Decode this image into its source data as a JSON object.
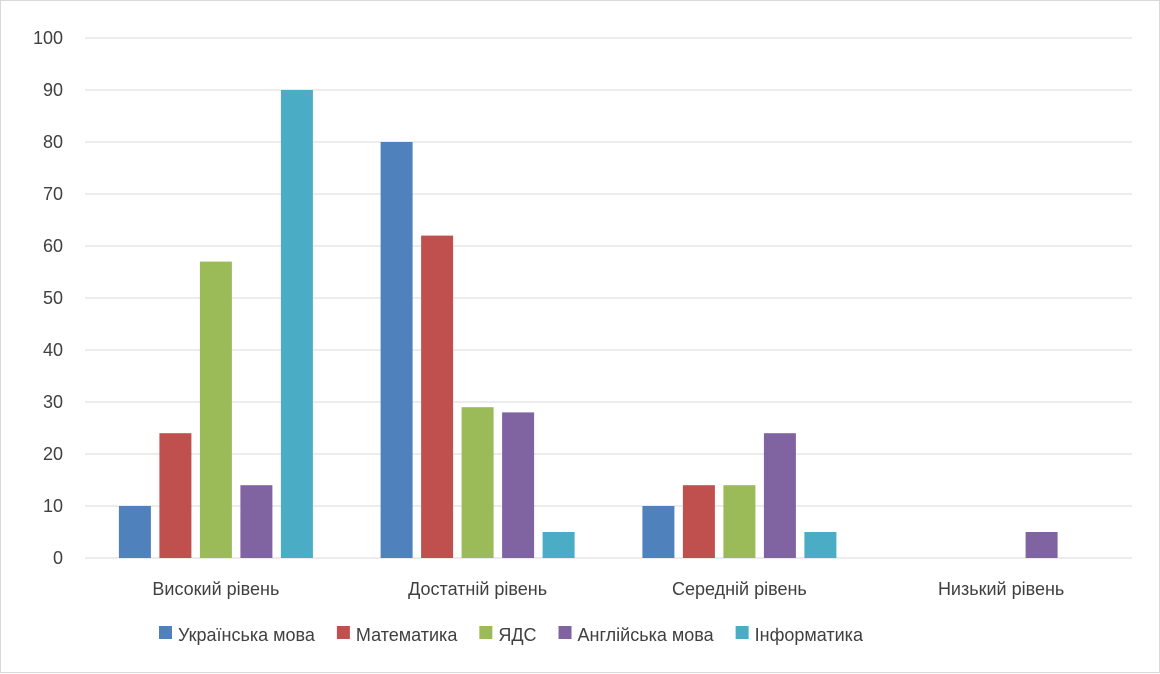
{
  "chart_data": {
    "type": "bar",
    "title": "",
    "xlabel": "",
    "ylabel": "",
    "ylim": [
      0,
      100
    ],
    "ytick_step": 10,
    "grid": true,
    "legend_position": "bottom",
    "categories": [
      "Високий рівень",
      "Достатній рівень",
      "Середній рівень",
      "Низький рівень"
    ],
    "series": [
      {
        "name": "Українська мова",
        "color": "#4F81BD",
        "values": [
          10,
          80,
          10,
          0
        ]
      },
      {
        "name": "Математика",
        "color": "#C0504D",
        "values": [
          24,
          62,
          14,
          0
        ]
      },
      {
        "name": "ЯДС",
        "color": "#9BBB59",
        "values": [
          57,
          29,
          14,
          0
        ]
      },
      {
        "name": "Англійська мова",
        "color": "#8064A2",
        "values": [
          14,
          28,
          24,
          5
        ]
      },
      {
        "name": "Інформатика",
        "color": "#4BACC6",
        "values": [
          90,
          5,
          5,
          0
        ]
      }
    ]
  }
}
